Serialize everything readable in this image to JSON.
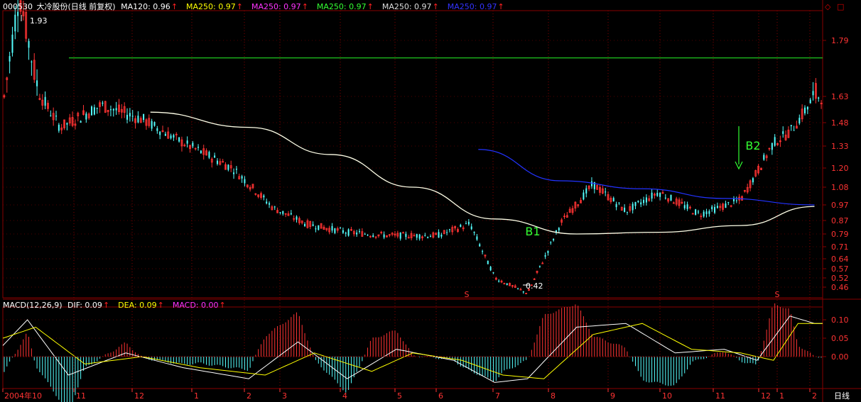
{
  "header": {
    "code": "000530",
    "name": "大冷股份(日线 前复权)",
    "indicators": [
      {
        "label": "MA120: 0.96",
        "color": "#ffffff"
      },
      {
        "label": "MA250: 0.97",
        "color": "#ffff00"
      },
      {
        "label": "MA250: 0.97",
        "color": "#ff33ff"
      },
      {
        "label": "MA250: 0.97",
        "color": "#33ff33"
      },
      {
        "label": "MA250: 0.97",
        "color": "#dddddd"
      },
      {
        "label": "MA250: 0.97",
        "color": "#3333ff"
      }
    ],
    "arrow_glyph": "↑"
  },
  "macd_header": {
    "label": "MACD(12,26,9)",
    "items": [
      {
        "label": "DIF: 0.09",
        "color": "#ffffff"
      },
      {
        "label": "DEA: 0.09",
        "color": "#ffff00"
      },
      {
        "label": "MACD: 0.00",
        "color": "#ff33ff"
      }
    ]
  },
  "corner_icons": [
    "diamond-icon",
    "square-icon"
  ],
  "price_axis": [
    "1.79",
    "1.63",
    "1.48",
    "1.33",
    "1.20",
    "1.08",
    "0.97",
    "0.87",
    "0.79",
    "0.71",
    "0.64",
    "0.57",
    "0.52",
    "0.46"
  ],
  "macd_axis": [
    "0.10",
    "0.05",
    "0.00"
  ],
  "time_axis": [
    "2004年10",
    "11",
    "12",
    "1",
    "2",
    "3",
    "4",
    "5",
    "6",
    "7",
    "8",
    "9",
    "10",
    "11",
    "12",
    "1",
    "2"
  ],
  "period_label": "日线",
  "annotations": {
    "high": "1.93",
    "low": "0.42",
    "b1": "B1",
    "b2": "B2",
    "s_mark": "S"
  },
  "colors": {
    "up": "#ff3333",
    "down": "#55ffff",
    "ma120": "#ffffe8",
    "ma250": "#2233ff",
    "resistance": "#22dd22",
    "grid": "#880000",
    "axis_text": "#ff3333",
    "label_green": "#33ff33"
  },
  "chart_data": [
    {
      "type": "line",
      "title": "000530 大冷股份(日线 前复权)",
      "y_ticks": [
        1.79,
        1.63,
        1.48,
        1.33,
        1.2,
        1.08,
        0.97,
        0.87,
        0.79,
        0.71,
        0.64,
        0.57,
        0.52,
        0.46
      ],
      "series": [
        {
          "name": "MA120",
          "x": [
            0.18,
            0.3,
            0.4,
            0.5,
            0.6,
            0.7,
            0.8,
            0.9,
            0.99
          ],
          "values": [
            1.54,
            1.45,
            1.28,
            1.08,
            0.88,
            0.79,
            0.8,
            0.84,
            0.96
          ]
        },
        {
          "name": "MA250",
          "x": [
            0.58,
            0.68,
            0.78,
            0.88,
            0.99
          ],
          "values": [
            1.31,
            1.12,
            1.07,
            1.01,
            0.97
          ]
        }
      ],
      "price_path": {
        "x": [
          0.0,
          0.02,
          0.04,
          0.07,
          0.12,
          0.17,
          0.22,
          0.28,
          0.33,
          0.37,
          0.42,
          0.47,
          0.53,
          0.57,
          0.6,
          0.64,
          0.68,
          0.72,
          0.76,
          0.8,
          0.85,
          0.9,
          0.94,
          0.96,
          0.99
        ],
        "values": [
          1.6,
          1.93,
          1.68,
          1.45,
          1.58,
          1.5,
          1.35,
          1.2,
          0.95,
          0.85,
          0.8,
          0.78,
          0.78,
          0.85,
          0.52,
          0.42,
          0.85,
          1.1,
          0.93,
          1.05,
          0.91,
          1.0,
          1.35,
          1.42,
          1.63
        ]
      },
      "reference_level": 1.74,
      "high": 1.93,
      "low": 0.42
    },
    {
      "type": "bar",
      "title": "MACD(12,26,9)",
      "y_ticks": [
        0.1,
        0.05,
        0.0
      ],
      "series": [
        {
          "name": "DIF",
          "x": [
            0.0,
            0.03,
            0.08,
            0.15,
            0.22,
            0.3,
            0.36,
            0.42,
            0.48,
            0.55,
            0.6,
            0.64,
            0.7,
            0.76,
            0.82,
            0.88,
            0.92,
            0.96,
            0.99
          ],
          "values": [
            0.03,
            0.1,
            -0.05,
            0.01,
            -0.03,
            -0.06,
            0.04,
            -0.06,
            0.02,
            -0.01,
            -0.07,
            -0.06,
            0.08,
            0.09,
            0.01,
            0.02,
            -0.01,
            0.11,
            0.09
          ]
        },
        {
          "name": "DEA",
          "x": [
            0.0,
            0.04,
            0.1,
            0.17,
            0.24,
            0.32,
            0.38,
            0.45,
            0.5,
            0.56,
            0.61,
            0.66,
            0.72,
            0.78,
            0.84,
            0.9,
            0.94,
            0.97,
            0.99
          ],
          "values": [
            0.05,
            0.08,
            -0.02,
            0.0,
            -0.03,
            -0.05,
            0.01,
            -0.04,
            0.01,
            -0.01,
            -0.05,
            -0.06,
            0.06,
            0.09,
            0.02,
            0.01,
            -0.01,
            0.09,
            0.09
          ]
        }
      ]
    }
  ]
}
